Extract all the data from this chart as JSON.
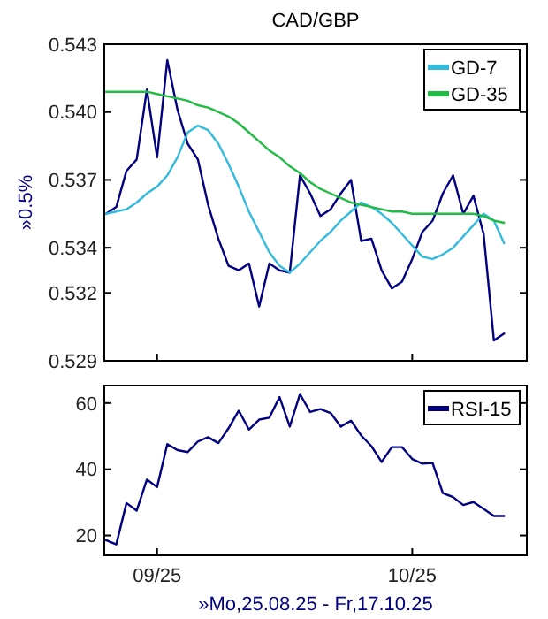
{
  "chart_data": [
    {
      "type": "line",
      "title": "CAD/GBP",
      "ylabel": "»0.5%",
      "categories": [
        null,
        null,
        null,
        null,
        null,
        null,
        null,
        null,
        null,
        null,
        null,
        null,
        null,
        null,
        null,
        null,
        null,
        null,
        null,
        null,
        null,
        null,
        null,
        null,
        null,
        null,
        null,
        null,
        null,
        null,
        null,
        null,
        null,
        null,
        null,
        null,
        null,
        null,
        null,
        null
      ],
      "ylim": [
        0.529,
        0.543
      ],
      "yticks": [
        0.529,
        0.532,
        0.534,
        0.537,
        {
          "value": 0.54,
          "label": "0.540"
        },
        0.543
      ],
      "tick_labels": "y",
      "legend": "top right",
      "grid": false,
      "series": [
        {
          "color": "#000080",
          "values": [
            0.5355,
            0.5358,
            0.5374,
            0.5379,
            0.541,
            0.538,
            0.5423,
            0.5401,
            0.5386,
            0.5379,
            0.5359,
            0.5344,
            0.5332,
            0.533,
            0.5333,
            0.5314,
            0.5333,
            0.533,
            0.5329,
            0.5372,
            0.5364,
            0.5354,
            0.5357,
            0.5364,
            0.537,
            0.5343,
            0.5344,
            0.533,
            0.5322,
            0.5325,
            0.5335,
            0.5347,
            0.5352,
            0.5364,
            0.5372,
            0.5355,
            0.5363,
            0.5346,
            0.5299,
            0.5302
          ]
        },
        {
          "name": "GD-7",
          "color": "#33bbdd",
          "values": [
            0.5355,
            0.5356,
            0.5357,
            0.536,
            0.5364,
            0.5367,
            0.5372,
            0.538,
            0.5391,
            0.5394,
            0.5392,
            0.5386,
            0.5377,
            0.5367,
            0.5356,
            0.5347,
            0.5338,
            0.5332,
            0.5329,
            0.5333,
            0.5338,
            0.5343,
            0.5347,
            0.5352,
            0.5356,
            0.536,
            0.5358,
            0.5355,
            0.5351,
            0.5346,
            0.5341,
            0.5336,
            0.5335,
            0.5337,
            0.534,
            0.5345,
            0.535,
            0.5355,
            0.5352,
            0.5342
          ]
        },
        {
          "name": "GD-35",
          "color": "#22bb44",
          "values": [
            0.5409,
            0.5409,
            0.5409,
            0.5409,
            0.5409,
            0.5408,
            0.5407,
            0.5406,
            0.5405,
            0.5403,
            0.5402,
            0.54,
            0.5398,
            0.5395,
            0.5391,
            0.5387,
            0.5383,
            0.538,
            0.5376,
            0.5373,
            0.5369,
            0.5366,
            0.5364,
            0.5362,
            0.536,
            0.5359,
            0.5358,
            0.5357,
            0.5356,
            0.5356,
            0.5355,
            0.5355,
            0.5355,
            0.5355,
            0.5355,
            0.5355,
            0.5355,
            0.5354,
            0.5352,
            0.5351
          ]
        }
      ]
    },
    {
      "type": "line",
      "xlabel": "»Mo,25.08.25 - Fr,17.10.25",
      "categories": [
        null,
        null,
        null,
        null,
        null,
        "09/25",
        null,
        null,
        null,
        null,
        null,
        null,
        null,
        null,
        null,
        null,
        null,
        null,
        null,
        null,
        null,
        null,
        null,
        null,
        null,
        null,
        null,
        null,
        null,
        null,
        "10/25",
        null,
        null,
        null,
        null,
        null,
        null,
        null,
        null,
        null
      ],
      "ylim": [
        14,
        65.3
      ],
      "yticks": [
        20,
        40,
        60
      ],
      "legend": "top right",
      "grid": false,
      "series": [
        {
          "name": "RSI-15",
          "color": "#000080",
          "values": [
            18.6,
            17.3,
            29.8,
            27.5,
            36.9,
            34.6,
            47.6,
            45.8,
            45.2,
            48.4,
            49.7,
            47.9,
            52.4,
            57.7,
            52,
            55,
            55.6,
            61.8,
            52.9,
            62.7,
            57.3,
            58.2,
            57,
            52.9,
            54.7,
            50.2,
            47,
            42.2,
            46.7,
            46.7,
            43.1,
            41.7,
            41.9,
            32.8,
            31.6,
            29.2,
            30.1,
            28,
            25.9,
            25.9
          ]
        }
      ]
    }
  ]
}
